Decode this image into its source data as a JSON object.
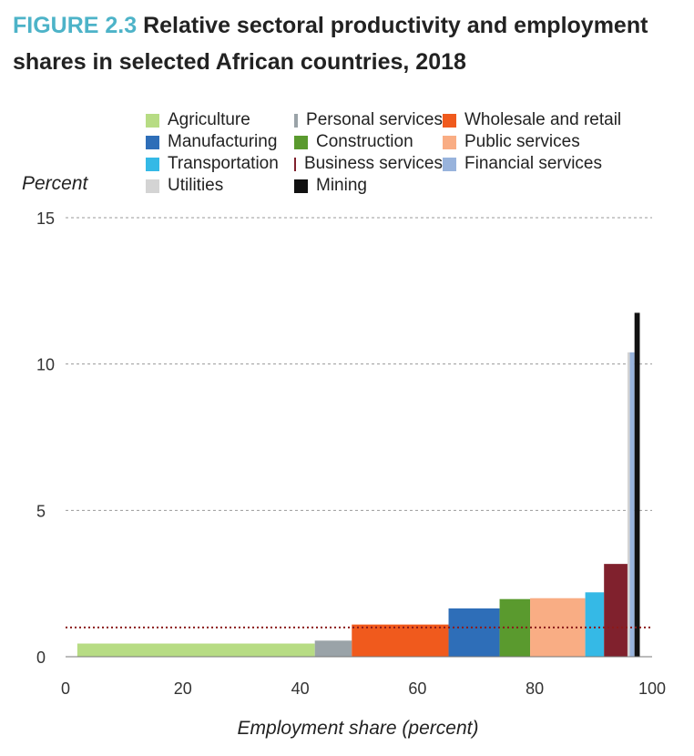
{
  "figure": {
    "label": "FIGURE 2.3",
    "title_rest": " Relative sectoral productivity and employment shares in selected African countries, 2018"
  },
  "chart_data": {
    "type": "bar",
    "subtype": "variable-width bar (Marimekko)",
    "ylabel": "Percent",
    "xlabel": "Employment share (percent)",
    "xlim": [
      0,
      100
    ],
    "ylim": [
      0,
      15
    ],
    "x_ticks": [
      "0",
      "20",
      "40",
      "60",
      "80",
      "100"
    ],
    "y_ticks": [
      "0",
      "5",
      "10",
      "15"
    ],
    "grid": "horizontal dashed",
    "reference_line": {
      "y": 1,
      "style": "dotted",
      "color": "#8b1a1a"
    },
    "legend_position": "top",
    "legend": [
      [
        "Agriculture",
        "Personal services",
        "Wholesale and retail"
      ],
      [
        "Manufacturing",
        "Construction",
        "Public services"
      ],
      [
        "Transportation",
        "Business services",
        "Financial services"
      ],
      [
        "Utilities",
        "Mining"
      ]
    ],
    "series": [
      {
        "name": "Agriculture",
        "x_start": 2.0,
        "x_end": 42.5,
        "value": 0.45,
        "color": "#b7dc84"
      },
      {
        "name": "Personal services",
        "x_start": 42.5,
        "x_end": 48.8,
        "value": 0.55,
        "color": "#9aa3a8"
      },
      {
        "name": "Wholesale and retail",
        "x_start": 48.8,
        "x_end": 65.3,
        "value": 1.1,
        "color": "#f05a1d"
      },
      {
        "name": "Manufacturing",
        "x_start": 65.3,
        "x_end": 74.0,
        "value": 1.65,
        "color": "#2e6eb8"
      },
      {
        "name": "Construction",
        "x_start": 74.0,
        "x_end": 79.2,
        "value": 1.97,
        "color": "#5a9a2e"
      },
      {
        "name": "Public services",
        "x_start": 79.2,
        "x_end": 88.6,
        "value": 2.0,
        "color": "#f9ad84"
      },
      {
        "name": "Transportation",
        "x_start": 88.6,
        "x_end": 91.8,
        "value": 2.2,
        "color": "#35b9e6"
      },
      {
        "name": "Business services",
        "x_start": 91.8,
        "x_end": 95.8,
        "value": 3.17,
        "color": "#80212d"
      },
      {
        "name": "Utilities",
        "x_start": 95.8,
        "x_end": 96.2,
        "value": 10.4,
        "color": "#d4d4d4"
      },
      {
        "name": "Financial services",
        "x_start": 96.2,
        "x_end": 97.0,
        "value": 10.4,
        "color": "#98b3dc"
      },
      {
        "name": "Mining",
        "x_start": 97.0,
        "x_end": 97.9,
        "value": 11.75,
        "color": "#111111"
      }
    ]
  }
}
